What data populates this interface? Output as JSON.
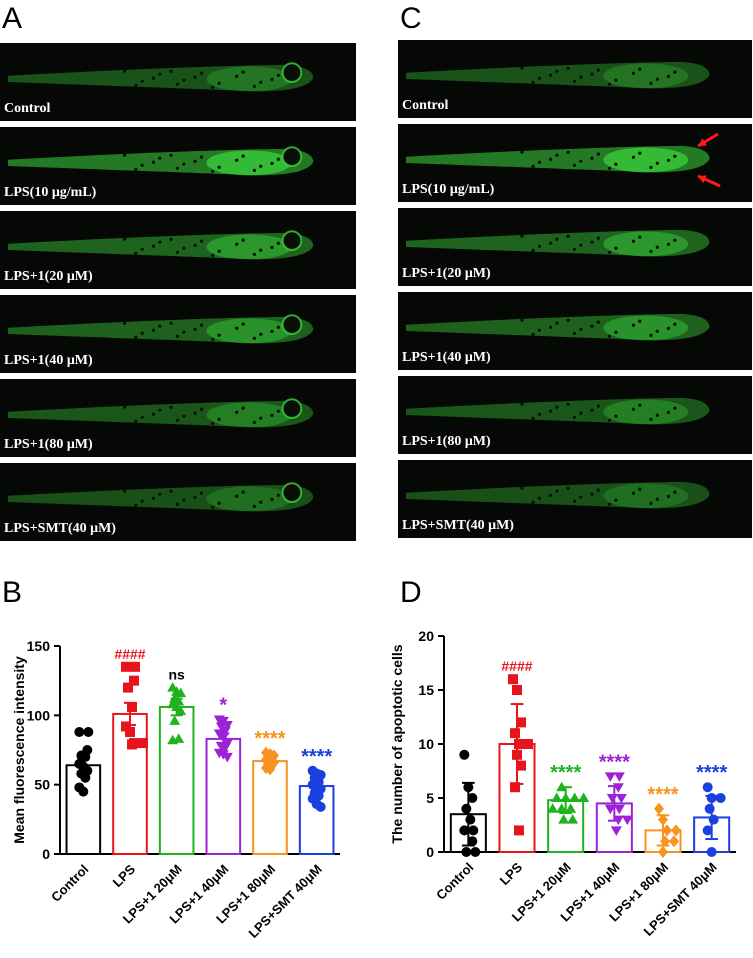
{
  "panels": {
    "a": {
      "letter": "A",
      "labels": [
        "Control",
        "LPS(10 μg/mL)",
        "LPS+1(20 μM)",
        "LPS+1(40 μM)",
        "LPS+1(80 μM)",
        "LPS+SMT(40 μM)"
      ]
    },
    "c": {
      "letter": "C",
      "labels": [
        "Control",
        "LPS(10 μg/mL)",
        "LPS+1(20 μM)",
        "LPS+1(40 μM)",
        "LPS+1(80 μM)",
        "LPS+SMT(40 μM)"
      ]
    },
    "b": {
      "letter": "B"
    },
    "d": {
      "letter": "D"
    }
  },
  "colors": {
    "control": "#000000",
    "lps": "#e8141b",
    "lps1_20": "#1fb31f",
    "lps1_40": "#9c22d6",
    "lps1_80": "#f7931e",
    "lps_smt": "#1c3fe0",
    "fluor": "#3cd23c"
  },
  "chart_data": [
    {
      "type": "bar",
      "ylabel": "Mean fluorescence intensity",
      "ylim": [
        0,
        150
      ],
      "yticks": [
        "0",
        "50",
        "100",
        "150"
      ],
      "categories": [
        "Control",
        "LPS",
        "LPS+1 20μM",
        "LPS+1 40μM",
        "LPS+1 80μM",
        "LPS+SMT 40μM"
      ],
      "values": [
        64,
        101,
        106,
        83,
        67,
        49
      ],
      "errors": [
        5,
        8,
        6,
        4,
        3,
        5
      ],
      "annotations": [
        "",
        "####",
        "ns",
        "*",
        "****",
        "****"
      ],
      "points": [
        [
          88,
          88,
          75,
          71,
          70,
          65,
          63,
          60,
          58,
          55,
          48,
          45
        ],
        [
          135,
          135,
          125,
          120,
          106,
          92,
          88,
          80,
          80,
          79
        ],
        [
          120,
          117,
          116,
          112,
          110,
          108,
          106,
          103,
          96,
          83,
          82
        ],
        [
          97,
          96,
          93,
          92,
          89,
          87,
          84,
          80,
          78,
          77,
          73,
          72,
          70
        ],
        [
          73,
          72,
          71,
          70,
          69,
          68,
          67,
          66,
          65,
          64,
          62,
          61
        ],
        [
          60,
          58,
          57,
          55,
          52,
          50,
          49,
          47,
          44,
          42,
          40,
          36,
          34
        ]
      ]
    },
    {
      "type": "bar",
      "ylabel": "The number of apoptotic cells",
      "ylim": [
        0,
        20
      ],
      "yticks": [
        "0",
        "5",
        "10",
        "15",
        "20"
      ],
      "categories": [
        "Control",
        "LPS",
        "LPS+1 20μM",
        "LPS+1 40μM",
        "LPS+1 80μM",
        "LPS+SMT 40μM"
      ],
      "values": [
        3.5,
        10,
        4.8,
        4.5,
        2,
        3.2
      ],
      "errors": [
        2.9,
        3.7,
        1.2,
        1.6,
        1.4,
        2
      ],
      "annotations": [
        "",
        "####",
        "****",
        "****",
        "****",
        "****"
      ],
      "points": [
        [
          9,
          6,
          5,
          4,
          3,
          2,
          2,
          1,
          0,
          0
        ],
        [
          16,
          15,
          12,
          11,
          10,
          10,
          9,
          8,
          6,
          2
        ],
        [
          6,
          5,
          5,
          5,
          5,
          4,
          4,
          4,
          3,
          3
        ],
        [
          7,
          7,
          6,
          5,
          5,
          4,
          4,
          3,
          3,
          2
        ],
        [
          4,
          3,
          2,
          2,
          1,
          1,
          0
        ],
        [
          6,
          5,
          5,
          4,
          3,
          2,
          0
        ]
      ]
    }
  ]
}
